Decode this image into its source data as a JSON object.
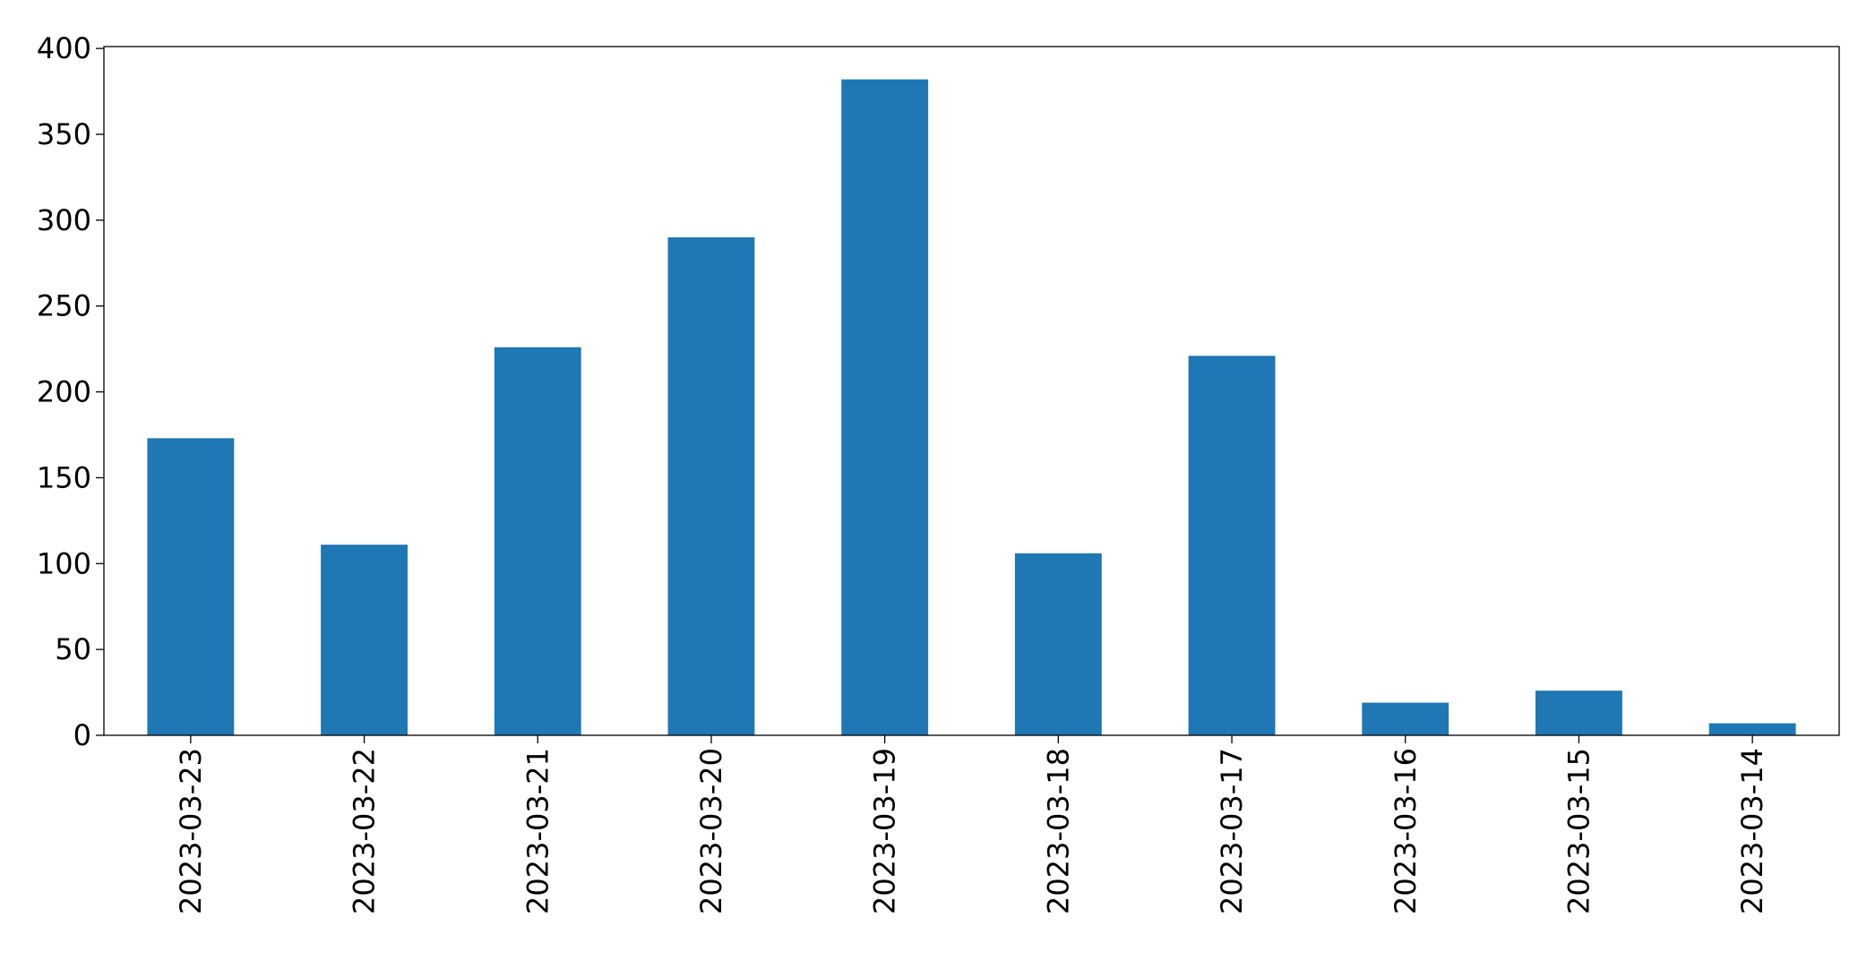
{
  "chart_data": {
    "type": "bar",
    "categories": [
      "2023-03-23",
      "2023-03-22",
      "2023-03-21",
      "2023-03-20",
      "2023-03-19",
      "2023-03-18",
      "2023-03-17",
      "2023-03-16",
      "2023-03-15",
      "2023-03-14"
    ],
    "values": [
      173,
      111,
      226,
      290,
      382,
      106,
      221,
      19,
      26,
      7
    ],
    "color": "#1f77b4",
    "ylim": [
      0,
      401.1
    ],
    "yticks": [
      0,
      50,
      100,
      150,
      200,
      250,
      300,
      350,
      400
    ],
    "grid": false
  }
}
